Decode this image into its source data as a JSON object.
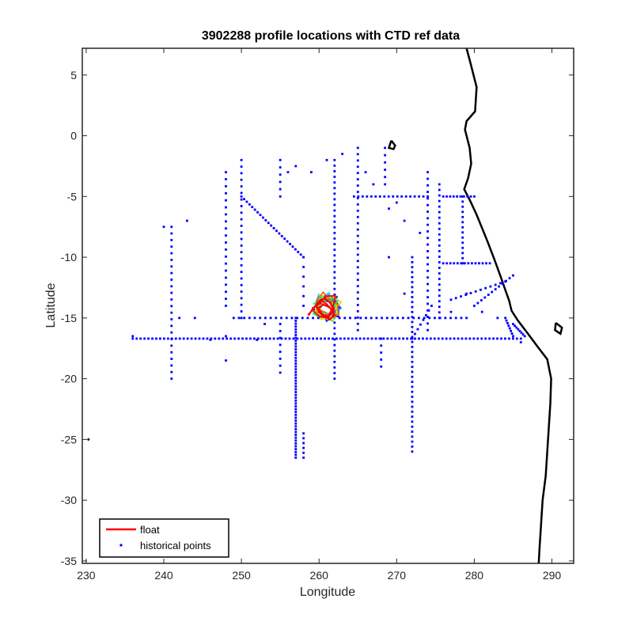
{
  "chart_data": {
    "type": "scatter",
    "title": "3902288 profile locations with CTD ref data",
    "xlabel": "Longitude",
    "ylabel": "Latitude",
    "xlim": [
      229.5,
      292.8
    ],
    "ylim": [
      -35.2,
      7.2
    ],
    "xticks": [
      230,
      240,
      250,
      260,
      270,
      280,
      290
    ],
    "yticks": [
      5,
      0,
      -5,
      -10,
      -15,
      -20,
      -25,
      -30,
      -35
    ],
    "grid": false,
    "legend_position": "bottom-left",
    "colors": {
      "float": "#ff0000",
      "historical": "#0000ff",
      "coast": "#000000",
      "axes": "#262626"
    },
    "series": [
      {
        "name": "float",
        "type": "line",
        "color": "#ff0000",
        "points": [
          [
            258.7,
            -14.7
          ],
          [
            259.3,
            -14.2
          ],
          [
            259.8,
            -13.8
          ],
          [
            260.3,
            -13.5
          ],
          [
            261.0,
            -13.9
          ],
          [
            261.6,
            -14.3
          ],
          [
            262.0,
            -14.8
          ],
          [
            261.4,
            -15.1
          ],
          [
            260.6,
            -14.9
          ],
          [
            260.0,
            -14.5
          ],
          [
            259.6,
            -14.0
          ],
          [
            260.1,
            -13.6
          ],
          [
            260.8,
            -13.4
          ],
          [
            261.5,
            -13.8
          ],
          [
            261.9,
            -14.4
          ],
          [
            261.2,
            -14.9
          ],
          [
            260.4,
            -14.7
          ],
          [
            259.9,
            -14.2
          ],
          [
            260.5,
            -13.9
          ],
          [
            261.3,
            -14.1
          ]
        ]
      },
      {
        "name": "historical points",
        "type": "scatter",
        "color": "#0000ff",
        "lines": [
          {
            "from": [
              236,
              -16.7
            ],
            "to": [
              286,
              -16.7
            ],
            "n": 100
          },
          {
            "from": [
              249,
              -15
            ],
            "to": [
              279,
              -15
            ],
            "n": 45
          },
          {
            "from": [
              280,
              -14
            ],
            "to": [
              285,
              -11.5
            ],
            "n": 12
          },
          {
            "from": [
              284,
              -15
            ],
            "to": [
              285,
              -16.5
            ],
            "n": 8
          },
          {
            "from": [
              285,
              -15.5
            ],
            "to": [
              286.5,
              -16.5
            ],
            "n": 8
          },
          {
            "from": [
              250,
              -5
            ],
            "to": [
              258,
              -10
            ],
            "n": 24
          },
          {
            "from": [
              258,
              -10
            ],
            "to": [
              258,
              -14
            ],
            "n": 6
          },
          {
            "from": [
              257,
              -15
            ],
            "to": [
              257,
              -26.5
            ],
            "n": 50
          },
          {
            "from": [
              262,
              -2
            ],
            "to": [
              262,
              -20
            ],
            "n": 40
          },
          {
            "from": [
              265,
              -1
            ],
            "to": [
              265,
              -16
            ],
            "n": 30
          },
          {
            "from": [
              272,
              -10
            ],
            "to": [
              272,
              -26
            ],
            "n": 40
          },
          {
            "from": [
              274,
              -3
            ],
            "to": [
              274,
              -16
            ],
            "n": 25
          },
          {
            "from": [
              275.5,
              -4
            ],
            "to": [
              275.5,
              -15
            ],
            "n": 25
          },
          {
            "from": [
              272,
              -16.7
            ],
            "to": [
              274.5,
              -14
            ],
            "n": 8
          },
          {
            "from": [
              248,
              -3
            ],
            "to": [
              248,
              -14
            ],
            "n": 20
          },
          {
            "from": [
              250,
              -2
            ],
            "to": [
              250,
              -15
            ],
            "n": 25
          },
          {
            "from": [
              255,
              -2
            ],
            "to": [
              255,
              -5
            ],
            "n": 6
          },
          {
            "from": [
              255,
              -15.5
            ],
            "to": [
              255,
              -19.5
            ],
            "n": 8
          },
          {
            "from": [
              241,
              -7.5
            ],
            "to": [
              241,
              -20
            ],
            "n": 24
          },
          {
            "from": [
              278.5,
              -5
            ],
            "to": [
              278.5,
              -10.5
            ],
            "n": 14
          },
          {
            "from": [
              276,
              -10.5
            ],
            "to": [
              282,
              -10.5
            ],
            "n": 14
          },
          {
            "from": [
              276,
              -5
            ],
            "to": [
              280,
              -5
            ],
            "n": 10
          },
          {
            "from": [
              264.5,
              -5
            ],
            "to": [
              274,
              -5
            ],
            "n": 18
          },
          {
            "from": [
              268.5,
              -1
            ],
            "to": [
              268.5,
              -4
            ],
            "n": 6
          },
          {
            "from": [
              258,
              -24.5
            ],
            "to": [
              258,
              -26.5
            ],
            "n": 6
          },
          {
            "from": [
              277,
              -13.5
            ],
            "to": [
              284,
              -12
            ],
            "n": 12
          },
          {
            "from": [
              268,
              -16.7
            ],
            "to": [
              268,
              -19
            ],
            "n": 5
          }
        ],
        "points": [
          [
            236,
            -16.5
          ],
          [
            240,
            -7.5
          ],
          [
            243,
            -7
          ],
          [
            242,
            -15
          ],
          [
            244,
            -15
          ],
          [
            248,
            -18.5
          ],
          [
            248,
            -16.5
          ],
          [
            246,
            -16.8
          ],
          [
            252,
            -16.8
          ],
          [
            253,
            -15.5
          ],
          [
            256,
            -3
          ],
          [
            257,
            -2.5
          ],
          [
            259,
            -3
          ],
          [
            261,
            -2
          ],
          [
            263,
            -1.5
          ],
          [
            266,
            -3
          ],
          [
            267,
            -4
          ],
          [
            269,
            -6
          ],
          [
            270,
            -5.5
          ],
          [
            271,
            -7
          ],
          [
            273,
            -8
          ],
          [
            269,
            -10
          ],
          [
            271,
            -13
          ],
          [
            277,
            -14.5
          ],
          [
            279,
            -13
          ],
          [
            281,
            -14.5
          ],
          [
            283,
            -15
          ],
          [
            286,
            -17
          ]
        ]
      }
    ],
    "float_cluster": {
      "center": [
        261.0,
        -14.1
      ],
      "colors": [
        "#0000ff",
        "#0033ff",
        "#0066ff",
        "#00ccff",
        "#00ff66",
        "#66ff00",
        "#ffcc00",
        "#ff6600",
        "#ff0000"
      ]
    }
  },
  "legend": {
    "entries": [
      {
        "label": "float",
        "color": "#ff0000"
      },
      {
        "label": "historical points",
        "color": "#0000ff"
      }
    ]
  }
}
